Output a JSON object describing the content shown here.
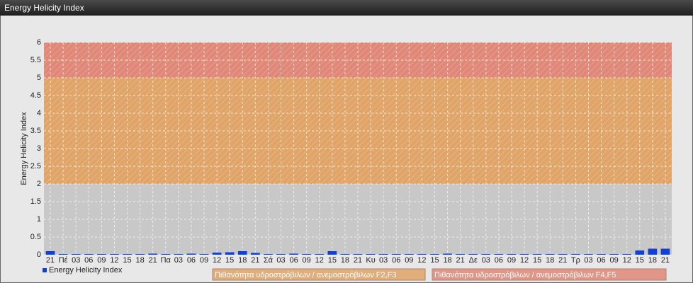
{
  "chart_data": {
    "type": "bar",
    "title": "Energy Helicity Index",
    "y_label": "Energy Helicity Index",
    "categories": [
      "21",
      "Πέ",
      "03",
      "06",
      "09",
      "12",
      "15",
      "18",
      "21",
      "Πα",
      "03",
      "06",
      "09",
      "12",
      "15",
      "18",
      "21",
      "Σά",
      "03",
      "06",
      "09",
      "12",
      "15",
      "18",
      "21",
      "Κυ",
      "03",
      "06",
      "09",
      "12",
      "15",
      "18",
      "21",
      "Δε",
      "03",
      "06",
      "09",
      "12",
      "15",
      "18",
      "21",
      "Τρ",
      "03",
      "06",
      "09",
      "12",
      "15",
      "18",
      "21"
    ],
    "series": [
      {
        "name": "Energy Helicity Index",
        "color": "#1040d8",
        "values": [
          0.1,
          0.02,
          0.02,
          0.02,
          0.02,
          0.02,
          0.02,
          0.02,
          0.03,
          0.02,
          0.02,
          0.03,
          0.02,
          0.06,
          0.07,
          0.1,
          0.05,
          0.02,
          0.02,
          0.03,
          0.02,
          0.02,
          0.1,
          0.02,
          0.02,
          0.02,
          0.02,
          0.02,
          0.02,
          0.02,
          0.02,
          0.03,
          0.02,
          0.02,
          0.02,
          0.02,
          0.02,
          0.02,
          0.02,
          0.02,
          0.02,
          0.02,
          0.02,
          0.02,
          0.02,
          0.02,
          0.12,
          0.17,
          0.17
        ]
      }
    ],
    "bands": [
      {
        "from": 2,
        "to": 5,
        "name": "Πιθανότητα υδροστρόβιλων / ανεμοστρόβιλων F2,F3",
        "color": "#e0a468"
      },
      {
        "from": 5,
        "to": 6,
        "name": "Πιθανότητα υδροστρόβιλων / ανεμοστρόβιλων F4,F5",
        "color": "#e08878"
      }
    ],
    "ylim": [
      0,
      6
    ],
    "yticks": [
      0,
      0.5,
      1,
      1.5,
      2,
      2.5,
      3,
      3.5,
      4,
      4.5,
      5,
      5.5,
      6
    ],
    "grid": true
  }
}
